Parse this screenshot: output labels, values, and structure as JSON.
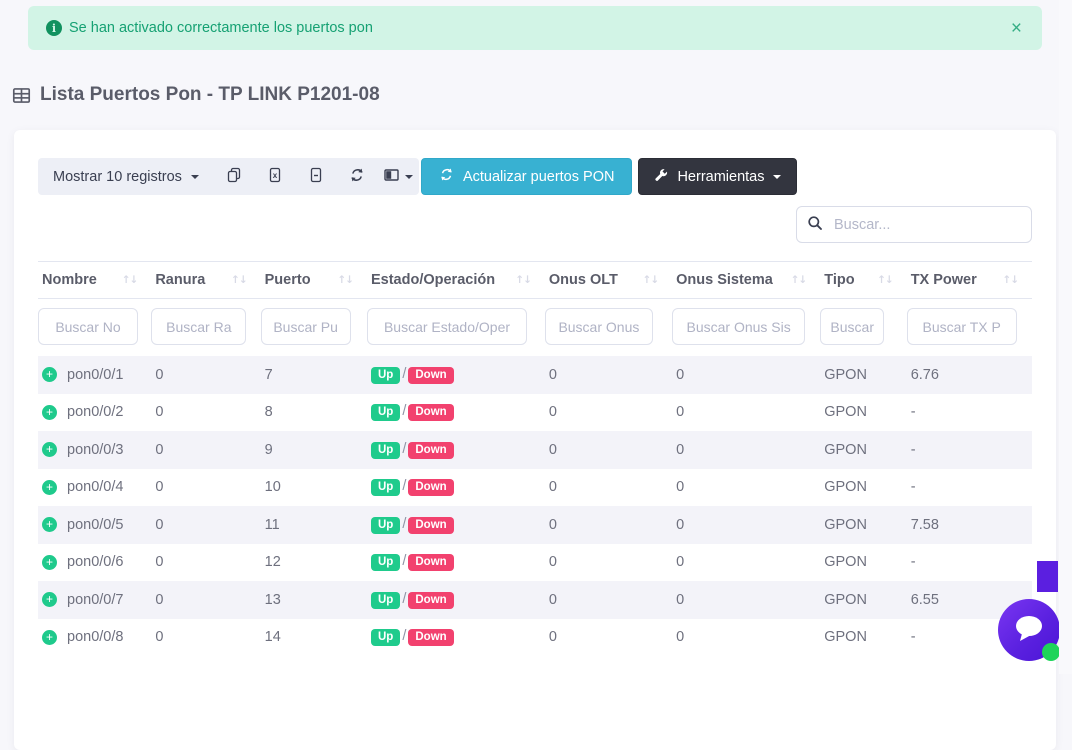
{
  "alert": {
    "icon": "info-circle-icon",
    "message": "Se han activado correctamente los puertos pon",
    "close_label": "×"
  },
  "page": {
    "title": "Lista Puertos Pon - TP LINK P1201-08"
  },
  "toolbar": {
    "length_button": "Mostrar 10 registros",
    "icon_buttons": [
      "copy-icon",
      "excel-icon",
      "file-icon",
      "refresh-icon",
      "columns-icon"
    ],
    "update_button": "Actualizar puertos PON",
    "tools_button": "Herramientas"
  },
  "search": {
    "placeholder": "Buscar..."
  },
  "table": {
    "columns": [
      {
        "label": "Nombre",
        "filter_placeholder": "Buscar No"
      },
      {
        "label": "Ranura",
        "filter_placeholder": "Buscar Ra"
      },
      {
        "label": "Puerto",
        "filter_placeholder": "Buscar Pu"
      },
      {
        "label": "Estado/Operación",
        "filter_placeholder": "Buscar Estado/Oper"
      },
      {
        "label": "Onus OLT",
        "filter_placeholder": "Buscar Onus"
      },
      {
        "label": "Onus Sistema",
        "filter_placeholder": "Buscar Onus Sis"
      },
      {
        "label": "Tipo",
        "filter_placeholder": "Buscar"
      },
      {
        "label": "TX Power",
        "filter_placeholder": "Buscar TX P"
      }
    ],
    "sort_glyph": "↑↓",
    "rows": [
      {
        "name": "pon0/0/1",
        "ranura": "0",
        "puerto": "7",
        "estado": "Up",
        "operacion": "Down",
        "onus_olt": "0",
        "onus_sistema": "0",
        "tipo": "GPON",
        "tx_power": "6.76"
      },
      {
        "name": "pon0/0/2",
        "ranura": "0",
        "puerto": "8",
        "estado": "Up",
        "operacion": "Down",
        "onus_olt": "0",
        "onus_sistema": "0",
        "tipo": "GPON",
        "tx_power": "-"
      },
      {
        "name": "pon0/0/3",
        "ranura": "0",
        "puerto": "9",
        "estado": "Up",
        "operacion": "Down",
        "onus_olt": "0",
        "onus_sistema": "0",
        "tipo": "GPON",
        "tx_power": "-"
      },
      {
        "name": "pon0/0/4",
        "ranura": "0",
        "puerto": "10",
        "estado": "Up",
        "operacion": "Down",
        "onus_olt": "0",
        "onus_sistema": "0",
        "tipo": "GPON",
        "tx_power": "-"
      },
      {
        "name": "pon0/0/5",
        "ranura": "0",
        "puerto": "11",
        "estado": "Up",
        "operacion": "Down",
        "onus_olt": "0",
        "onus_sistema": "0",
        "tipo": "GPON",
        "tx_power": "7.58"
      },
      {
        "name": "pon0/0/6",
        "ranura": "0",
        "puerto": "12",
        "estado": "Up",
        "operacion": "Down",
        "onus_olt": "0",
        "onus_sistema": "0",
        "tipo": "GPON",
        "tx_power": "-"
      },
      {
        "name": "pon0/0/7",
        "ranura": "0",
        "puerto": "13",
        "estado": "Up",
        "operacion": "Down",
        "onus_olt": "0",
        "onus_sistema": "0",
        "tipo": "GPON",
        "tx_power": "6.55"
      },
      {
        "name": "pon0/0/8",
        "ranura": "0",
        "puerto": "14",
        "estado": "Up",
        "operacion": "Down",
        "onus_olt": "0",
        "onus_sistema": "0",
        "tipo": "GPON",
        "tx_power": "-"
      }
    ]
  },
  "colors": {
    "alert_bg": "#d2f4e6",
    "alert_text": "#16a173",
    "accent_cyan": "#38b1d2",
    "dark_button": "#33353f",
    "badge_up": "#1fcb8c",
    "badge_down": "#f2416e",
    "row_stripe": "#f3f3f9",
    "chat_purple": "#5b21e0",
    "online_dot": "#1ed45a"
  }
}
